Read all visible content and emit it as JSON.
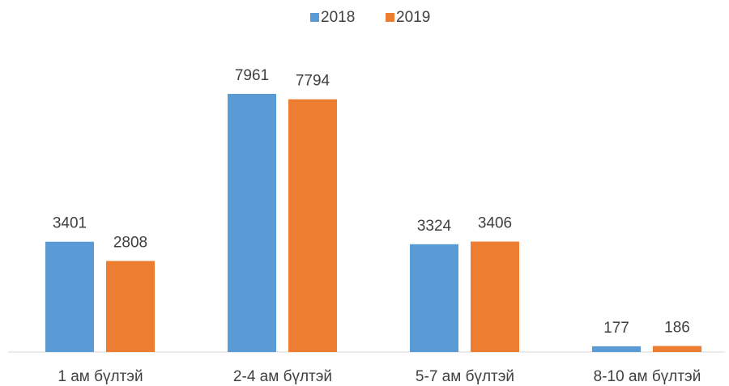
{
  "chart_data": {
    "type": "bar",
    "categories": [
      "1 ам бүлтэй",
      "2-4 ам бүлтэй",
      "5-7 ам бүлтэй",
      "8-10 ам бүлтэй"
    ],
    "series": [
      {
        "name": "2018",
        "color": "#5b9bd5",
        "values": [
          3401,
          7961,
          3324,
          177
        ]
      },
      {
        "name": "2019",
        "color": "#ed7d31",
        "values": [
          2808,
          7794,
          3406,
          186
        ]
      }
    ],
    "legend": "top"
  }
}
